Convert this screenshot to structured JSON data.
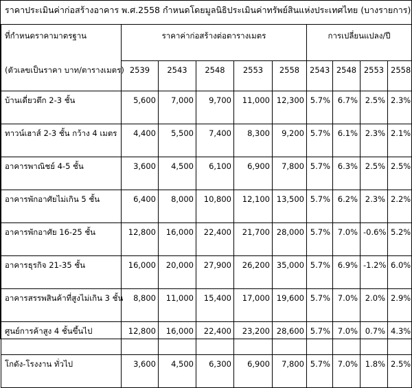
{
  "title": "ราคาประเมินค่าก่อสร้างอาคาร พ.ศ.2558 กำหนดโดยมูลนิธิประเมินค่าทรัพย์สินแห่งประเทศไทย (บางรายการ)",
  "header": {
    "row_label_1": "ที่กำหนดราคามาตรฐาน",
    "row_label_2": "(ตัวเลขเป็นราคา บาท/ตารางเมตร)",
    "group_cost": "ราคาค่าก่อสร้างต่อตารางเมตร",
    "group_change": "การเปลี่ยนแปลง/ปี",
    "cost_years": [
      "2539",
      "2543",
      "2548",
      "2553",
      "2558"
    ],
    "change_years": [
      "2543",
      "2548",
      "2553",
      "2558"
    ]
  },
  "rows": [
    {
      "label": "บ้านเดี่ยวตึก 2-3 ชั้น",
      "costs": [
        "5,600",
        "7,000",
        "9,700",
        "11,000",
        "12,300"
      ],
      "changes": [
        "5.7%",
        "6.7%",
        "2.5%",
        "2.3%"
      ]
    },
    {
      "label": "ทาวน์เฮาส์ 2-3 ชั้น กว้าง 4 เมตร",
      "costs": [
        "4,400",
        "5,500",
        "7,400",
        "8,300",
        "9,200"
      ],
      "changes": [
        "5.7%",
        "6.1%",
        "2.3%",
        "2.1%"
      ]
    },
    {
      "label": "อาคารพาณิชย์ 4-5 ชั้น",
      "costs": [
        "3,600",
        "4,500",
        "6,100",
        "6,900",
        "7,800"
      ],
      "changes": [
        "5.7%",
        "6.3%",
        "2.5%",
        "2.5%"
      ]
    },
    {
      "label": "อาคารพักอาศัยไม่เกิน 5 ชั้น",
      "costs": [
        "6,400",
        "8,000",
        "10,800",
        "12,100",
        "13,500"
      ],
      "changes": [
        "5.7%",
        "6.2%",
        "2.3%",
        "2.2%"
      ]
    },
    {
      "label": "อาคารพักอาศัย 16-25 ชั้น",
      "costs": [
        "12,800",
        "16,000",
        "22,400",
        "21,700",
        "28,000"
      ],
      "changes": [
        "5.7%",
        "7.0%",
        "-0.6%",
        "5.2%"
      ]
    },
    {
      "label": "อาคารธุรกิจ 21-35 ชั้น",
      "costs": [
        "16,000",
        "20,000",
        "27,900",
        "26,200",
        "35,000"
      ],
      "changes": [
        "5.7%",
        "6.9%",
        "-1.2%",
        "6.0%"
      ]
    },
    {
      "label": "อาคารสรรพสินค้าที่สูงไม่เกิน 3 ชั้น",
      "costs": [
        "8,800",
        "11,000",
        "15,400",
        "17,000",
        "19,600"
      ],
      "changes": [
        "5.7%",
        "7.0%",
        "2.0%",
        "2.9%"
      ]
    },
    {
      "label": "ศูนย์การค้าสูง 4 ชั้นขึ้นไป",
      "costs": [
        "12,800",
        "16,000",
        "22,400",
        "23,200",
        "28,600"
      ],
      "changes": [
        "5.7%",
        "7.0%",
        "0.7%",
        "4.3%"
      ]
    },
    {
      "label": "โกดัง-โรงงาน ทั่วไป",
      "costs": [
        "3,600",
        "4,500",
        "6,300",
        "6,900",
        "7,800"
      ],
      "changes": [
        "5.7%",
        "7.0%",
        "1.8%",
        "2.5%"
      ]
    }
  ]
}
